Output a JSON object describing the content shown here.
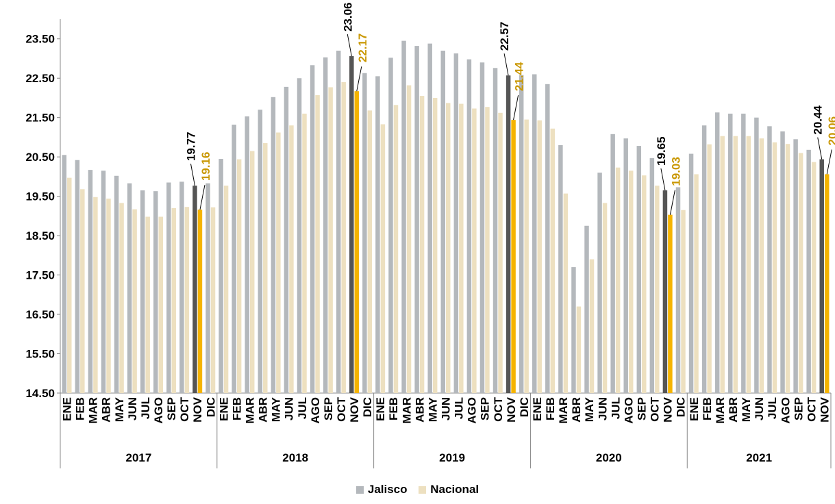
{
  "chart_data": {
    "type": "bar",
    "title": "",
    "xlabel": "",
    "ylabel": "",
    "ylim": [
      14.5,
      24.0
    ],
    "yticks": [
      "14.50",
      "15.50",
      "16.50",
      "17.50",
      "18.50",
      "19.50",
      "20.50",
      "21.50",
      "22.50",
      "23.50"
    ],
    "grid": false,
    "legend_position": "bottom",
    "years": [
      {
        "label": "2017",
        "months": [
          "ENE",
          "FEB",
          "MAR",
          "ABR",
          "MAY",
          "JUN",
          "JUL",
          "AGO",
          "SEP",
          "OCT",
          "NOV",
          "DIC"
        ]
      },
      {
        "label": "2018",
        "months": [
          "ENE",
          "FEB",
          "MAR",
          "ABR",
          "MAY",
          "JUN",
          "JUL",
          "AGO",
          "SEP",
          "OCT",
          "NOV",
          "DIC"
        ]
      },
      {
        "label": "2019",
        "months": [
          "ENE",
          "FEB",
          "MAR",
          "ABR",
          "MAY",
          "JUN",
          "JUL",
          "AGO",
          "SEP",
          "OCT",
          "NOV",
          "DIC"
        ]
      },
      {
        "label": "2020",
        "months": [
          "ENE",
          "FEB",
          "MAR",
          "ABR",
          "MAY",
          "JUN",
          "JUL",
          "AGO",
          "SEP",
          "OCT",
          "NOV",
          "DIC"
        ]
      },
      {
        "label": "2021",
        "months": [
          "ENE",
          "FEB",
          "MAR",
          "ABR",
          "MAY",
          "JUN",
          "JUL",
          "AGO",
          "SEP",
          "OCT",
          "NOV"
        ]
      }
    ],
    "series": [
      {
        "name": "Jalisco",
        "color": "#b4b8bc",
        "highlight_color": "#555555",
        "values": [
          20.55,
          20.42,
          20.17,
          20.15,
          20.02,
          19.83,
          19.65,
          19.63,
          19.85,
          19.87,
          19.77,
          19.83,
          20.45,
          21.32,
          21.53,
          21.7,
          22.02,
          22.28,
          22.5,
          22.83,
          23.03,
          23.2,
          23.06,
          22.63,
          22.55,
          23.02,
          23.45,
          23.32,
          23.38,
          23.2,
          23.13,
          22.98,
          22.9,
          22.76,
          22.57,
          22.58,
          22.6,
          22.35,
          20.8,
          17.7,
          18.75,
          20.1,
          21.08,
          20.97,
          20.78,
          20.47,
          19.65,
          19.73,
          20.58,
          21.3,
          21.63,
          21.6,
          21.6,
          21.5,
          21.28,
          21.15,
          20.95,
          20.68,
          20.44
        ]
      },
      {
        "name": "Nacional",
        "color": "#ede0c0",
        "highlight_color": "#f5b400",
        "values": [
          19.97,
          19.68,
          19.48,
          19.44,
          19.33,
          19.17,
          18.98,
          18.98,
          19.2,
          19.23,
          19.16,
          19.22,
          19.77,
          20.44,
          20.65,
          20.85,
          21.12,
          21.3,
          21.6,
          22.07,
          22.27,
          22.4,
          22.17,
          21.68,
          21.33,
          21.82,
          22.32,
          22.05,
          22.0,
          21.87,
          21.85,
          21.73,
          21.77,
          21.62,
          21.44,
          21.45,
          21.43,
          21.22,
          19.57,
          16.7,
          17.9,
          19.33,
          20.23,
          20.15,
          20.03,
          19.77,
          19.03,
          19.15,
          20.06,
          20.82,
          21.03,
          21.03,
          21.03,
          20.97,
          20.87,
          20.83,
          20.6,
          20.37,
          20.06
        ]
      }
    ],
    "highlight_indices": [
      10,
      22,
      34,
      46,
      58
    ],
    "annotations": [
      {
        "index": 10,
        "jalisco": "19.77",
        "nacional": "19.16"
      },
      {
        "index": 22,
        "jalisco": "23.06",
        "nacional": "22.17"
      },
      {
        "index": 34,
        "jalisco": "22.57",
        "nacional": "21.44"
      },
      {
        "index": 46,
        "jalisco": "19.65",
        "nacional": "19.03"
      },
      {
        "index": 58,
        "jalisco": "20.44",
        "nacional": "20.06"
      }
    ],
    "annotation_colors": {
      "jalisco": "#000000",
      "nacional": "#c99700"
    }
  },
  "legend": {
    "items": [
      {
        "label": "Jalisco",
        "color": "#b4b8bc"
      },
      {
        "label": "Nacional",
        "color": "#ede0c0"
      }
    ]
  }
}
